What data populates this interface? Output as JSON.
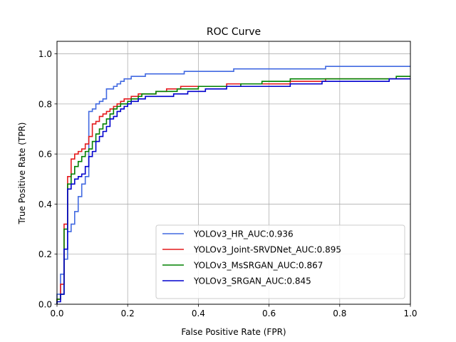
{
  "chart_data": {
    "type": "line",
    "title": "ROC Curve",
    "xlabel": "False Positive Rate (FPR)",
    "ylabel": "True Positive Rate (TPR)",
    "xlim": [
      0.0,
      1.0
    ],
    "ylim": [
      0.0,
      1.05
    ],
    "xticks": [
      0.0,
      0.2,
      0.4,
      0.6,
      0.8,
      1.0
    ],
    "xtick_labels": [
      "0.0",
      "0.2",
      "0.4",
      "0.6",
      "0.8",
      "1.0"
    ],
    "yticks": [
      0.0,
      0.2,
      0.4,
      0.6,
      0.8,
      1.0
    ],
    "ytick_labels": [
      "0.0",
      "0.2",
      "0.4",
      "0.6",
      "0.8",
      "1.0"
    ],
    "grid": true,
    "legend_position": "lower-right",
    "series": [
      {
        "name": "YOLOv3_HR_AUC:0.936",
        "color": "#4169e1",
        "points": [
          [
            0.0,
            0.0
          ],
          [
            0.0,
            0.04
          ],
          [
            0.01,
            0.04
          ],
          [
            0.01,
            0.12
          ],
          [
            0.02,
            0.12
          ],
          [
            0.02,
            0.18
          ],
          [
            0.03,
            0.18
          ],
          [
            0.03,
            0.29
          ],
          [
            0.04,
            0.29
          ],
          [
            0.04,
            0.32
          ],
          [
            0.05,
            0.32
          ],
          [
            0.05,
            0.37
          ],
          [
            0.06,
            0.37
          ],
          [
            0.06,
            0.43
          ],
          [
            0.07,
            0.43
          ],
          [
            0.07,
            0.48
          ],
          [
            0.08,
            0.48
          ],
          [
            0.08,
            0.51
          ],
          [
            0.09,
            0.51
          ],
          [
            0.09,
            0.69
          ],
          [
            0.09,
            0.77
          ],
          [
            0.1,
            0.77
          ],
          [
            0.1,
            0.78
          ],
          [
            0.11,
            0.78
          ],
          [
            0.11,
            0.8
          ],
          [
            0.12,
            0.8
          ],
          [
            0.12,
            0.81
          ],
          [
            0.13,
            0.81
          ],
          [
            0.13,
            0.82
          ],
          [
            0.14,
            0.82
          ],
          [
            0.14,
            0.86
          ],
          [
            0.16,
            0.86
          ],
          [
            0.16,
            0.87
          ],
          [
            0.17,
            0.87
          ],
          [
            0.17,
            0.88
          ],
          [
            0.18,
            0.88
          ],
          [
            0.18,
            0.89
          ],
          [
            0.19,
            0.89
          ],
          [
            0.19,
            0.9
          ],
          [
            0.21,
            0.9
          ],
          [
            0.21,
            0.91
          ],
          [
            0.25,
            0.91
          ],
          [
            0.25,
            0.92
          ],
          [
            0.36,
            0.92
          ],
          [
            0.36,
            0.93
          ],
          [
            0.5,
            0.93
          ],
          [
            0.5,
            0.94
          ],
          [
            0.76,
            0.94
          ],
          [
            0.76,
            0.95
          ],
          [
            1.0,
            0.95
          ]
        ]
      },
      {
        "name": "YOLOv3_Joint-SRVDNet_AUC:0.895",
        "color": "#e41a1c",
        "points": [
          [
            0.0,
            0.0
          ],
          [
            0.0,
            0.02
          ],
          [
            0.01,
            0.02
          ],
          [
            0.01,
            0.08
          ],
          [
            0.02,
            0.08
          ],
          [
            0.02,
            0.32
          ],
          [
            0.03,
            0.32
          ],
          [
            0.03,
            0.51
          ],
          [
            0.04,
            0.51
          ],
          [
            0.04,
            0.58
          ],
          [
            0.05,
            0.58
          ],
          [
            0.05,
            0.6
          ],
          [
            0.06,
            0.6
          ],
          [
            0.06,
            0.61
          ],
          [
            0.07,
            0.61
          ],
          [
            0.07,
            0.62
          ],
          [
            0.08,
            0.62
          ],
          [
            0.08,
            0.64
          ],
          [
            0.09,
            0.64
          ],
          [
            0.09,
            0.67
          ],
          [
            0.1,
            0.67
          ],
          [
            0.1,
            0.72
          ],
          [
            0.11,
            0.72
          ],
          [
            0.11,
            0.73
          ],
          [
            0.12,
            0.73
          ],
          [
            0.12,
            0.75
          ],
          [
            0.13,
            0.75
          ],
          [
            0.13,
            0.76
          ],
          [
            0.14,
            0.76
          ],
          [
            0.14,
            0.77
          ],
          [
            0.15,
            0.77
          ],
          [
            0.15,
            0.78
          ],
          [
            0.16,
            0.78
          ],
          [
            0.16,
            0.79
          ],
          [
            0.17,
            0.79
          ],
          [
            0.17,
            0.8
          ],
          [
            0.18,
            0.8
          ],
          [
            0.18,
            0.81
          ],
          [
            0.19,
            0.81
          ],
          [
            0.19,
            0.82
          ],
          [
            0.21,
            0.82
          ],
          [
            0.21,
            0.83
          ],
          [
            0.23,
            0.83
          ],
          [
            0.23,
            0.84
          ],
          [
            0.28,
            0.84
          ],
          [
            0.28,
            0.85
          ],
          [
            0.31,
            0.85
          ],
          [
            0.31,
            0.86
          ],
          [
            0.35,
            0.86
          ],
          [
            0.35,
            0.87
          ],
          [
            0.48,
            0.87
          ],
          [
            0.48,
            0.88
          ],
          [
            0.66,
            0.88
          ],
          [
            0.66,
            0.89
          ],
          [
            0.76,
            0.89
          ],
          [
            0.76,
            0.9
          ],
          [
            1.0,
            0.9
          ]
        ]
      },
      {
        "name": "YOLOv3_MsSRGAN_AUC:0.867",
        "color": "#008000",
        "points": [
          [
            0.0,
            0.0
          ],
          [
            0.0,
            0.02
          ],
          [
            0.01,
            0.02
          ],
          [
            0.01,
            0.04
          ],
          [
            0.02,
            0.04
          ],
          [
            0.02,
            0.3
          ],
          [
            0.03,
            0.3
          ],
          [
            0.03,
            0.48
          ],
          [
            0.04,
            0.48
          ],
          [
            0.04,
            0.52
          ],
          [
            0.05,
            0.52
          ],
          [
            0.05,
            0.55
          ],
          [
            0.06,
            0.55
          ],
          [
            0.06,
            0.57
          ],
          [
            0.07,
            0.57
          ],
          [
            0.07,
            0.59
          ],
          [
            0.08,
            0.59
          ],
          [
            0.08,
            0.61
          ],
          [
            0.09,
            0.61
          ],
          [
            0.09,
            0.62
          ],
          [
            0.1,
            0.62
          ],
          [
            0.1,
            0.65
          ],
          [
            0.11,
            0.65
          ],
          [
            0.11,
            0.68
          ],
          [
            0.12,
            0.68
          ],
          [
            0.12,
            0.7
          ],
          [
            0.13,
            0.7
          ],
          [
            0.13,
            0.72
          ],
          [
            0.14,
            0.72
          ],
          [
            0.14,
            0.74
          ],
          [
            0.15,
            0.74
          ],
          [
            0.15,
            0.76
          ],
          [
            0.16,
            0.76
          ],
          [
            0.16,
            0.78
          ],
          [
            0.17,
            0.78
          ],
          [
            0.17,
            0.79
          ],
          [
            0.18,
            0.79
          ],
          [
            0.18,
            0.8
          ],
          [
            0.2,
            0.8
          ],
          [
            0.2,
            0.81
          ],
          [
            0.21,
            0.81
          ],
          [
            0.21,
            0.82
          ],
          [
            0.23,
            0.82
          ],
          [
            0.23,
            0.83
          ],
          [
            0.24,
            0.83
          ],
          [
            0.24,
            0.84
          ],
          [
            0.28,
            0.84
          ],
          [
            0.28,
            0.85
          ],
          [
            0.34,
            0.85
          ],
          [
            0.34,
            0.86
          ],
          [
            0.4,
            0.86
          ],
          [
            0.4,
            0.87
          ],
          [
            0.52,
            0.87
          ],
          [
            0.52,
            0.88
          ],
          [
            0.58,
            0.88
          ],
          [
            0.58,
            0.89
          ],
          [
            0.66,
            0.89
          ],
          [
            0.66,
            0.9
          ],
          [
            0.96,
            0.9
          ],
          [
            0.96,
            0.91
          ],
          [
            1.0,
            0.91
          ]
        ]
      },
      {
        "name": "YOLOv3_SRGAN_AUC:0.845",
        "color": "#0000cd",
        "points": [
          [
            0.0,
            0.0
          ],
          [
            0.0,
            0.01
          ],
          [
            0.01,
            0.01
          ],
          [
            0.01,
            0.04
          ],
          [
            0.02,
            0.04
          ],
          [
            0.02,
            0.22
          ],
          [
            0.03,
            0.22
          ],
          [
            0.03,
            0.46
          ],
          [
            0.04,
            0.46
          ],
          [
            0.04,
            0.48
          ],
          [
            0.05,
            0.48
          ],
          [
            0.05,
            0.5
          ],
          [
            0.06,
            0.5
          ],
          [
            0.06,
            0.51
          ],
          [
            0.07,
            0.51
          ],
          [
            0.07,
            0.52
          ],
          [
            0.08,
            0.52
          ],
          [
            0.08,
            0.55
          ],
          [
            0.09,
            0.55
          ],
          [
            0.09,
            0.59
          ],
          [
            0.1,
            0.59
          ],
          [
            0.1,
            0.61
          ],
          [
            0.11,
            0.61
          ],
          [
            0.11,
            0.65
          ],
          [
            0.12,
            0.65
          ],
          [
            0.12,
            0.67
          ],
          [
            0.13,
            0.67
          ],
          [
            0.13,
            0.69
          ],
          [
            0.14,
            0.69
          ],
          [
            0.14,
            0.71
          ],
          [
            0.15,
            0.71
          ],
          [
            0.15,
            0.74
          ],
          [
            0.16,
            0.74
          ],
          [
            0.16,
            0.75
          ],
          [
            0.17,
            0.75
          ],
          [
            0.17,
            0.77
          ],
          [
            0.18,
            0.77
          ],
          [
            0.18,
            0.78
          ],
          [
            0.19,
            0.78
          ],
          [
            0.19,
            0.79
          ],
          [
            0.2,
            0.79
          ],
          [
            0.2,
            0.8
          ],
          [
            0.21,
            0.8
          ],
          [
            0.21,
            0.81
          ],
          [
            0.23,
            0.81
          ],
          [
            0.23,
            0.82
          ],
          [
            0.25,
            0.82
          ],
          [
            0.25,
            0.83
          ],
          [
            0.33,
            0.83
          ],
          [
            0.33,
            0.84
          ],
          [
            0.37,
            0.84
          ],
          [
            0.37,
            0.85
          ],
          [
            0.42,
            0.85
          ],
          [
            0.42,
            0.86
          ],
          [
            0.48,
            0.86
          ],
          [
            0.48,
            0.87
          ],
          [
            0.66,
            0.87
          ],
          [
            0.66,
            0.88
          ],
          [
            0.75,
            0.88
          ],
          [
            0.75,
            0.89
          ],
          [
            0.94,
            0.89
          ],
          [
            0.94,
            0.9
          ],
          [
            1.0,
            0.9
          ]
        ]
      }
    ]
  }
}
